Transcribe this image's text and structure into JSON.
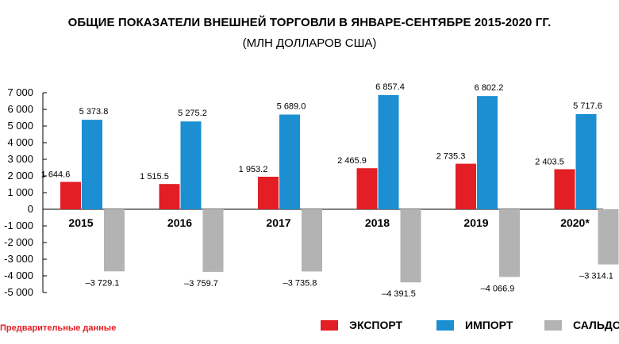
{
  "title": "ОБЩИЕ ПОКАЗАТЕЛИ ВНЕШНЕЙ ТОРГОВЛИ В ЯНВАРЕ-СЕНТЯБРЕ 2015-2020 ГГ.",
  "subtitle": "(МЛН ДОЛЛАРОВ США)",
  "footnote": "Предварительные данные",
  "colors": {
    "export": "#e31e24",
    "import": "#1b8fd2",
    "balance": "#b3b3b3"
  },
  "legend": [
    {
      "label": "ЭКСПОРТ",
      "color": "#e31e24"
    },
    {
      "label": "ИМПОРТ",
      "color": "#1b8fd2"
    },
    {
      "label": "САЛЬДО",
      "color": "#b3b3b3"
    }
  ],
  "chart_data": {
    "type": "bar",
    "title": "ОБЩИЕ ПОКАЗАТЕЛИ ВНЕШНЕЙ ТОРГОВЛИ В ЯНВАРЕ-СЕНТЯБРЕ 2015-2020 ГГ.",
    "subtitle": "(МЛН ДОЛЛАРОВ США)",
    "categories": [
      "2015",
      "2016",
      "2017",
      "2018",
      "2019",
      "2020*"
    ],
    "series": [
      {
        "name": "ЭКСПОРТ",
        "values": [
          1644.6,
          1515.5,
          1953.2,
          2465.9,
          2735.3,
          2403.5
        ],
        "labels": [
          "1 644.6",
          "1 515.5",
          "1 953.2",
          "2 465.9",
          "2 735.3",
          "2 403.5"
        ]
      },
      {
        "name": "ИМПОРТ",
        "values": [
          5373.8,
          5275.2,
          5689.0,
          6857.4,
          6802.2,
          5717.6
        ],
        "labels": [
          "5 373.8",
          "5 275.2",
          "5 689.0",
          "6 857.4",
          "6 802.2",
          "5 717.6"
        ]
      },
      {
        "name": "САЛЬДО",
        "values": [
          -3729.1,
          -3759.7,
          -3735.8,
          -4391.5,
          -4066.9,
          -3314.1
        ],
        "labels": [
          "–3 729.1",
          "–3 759.7",
          "–3 735.8",
          "–4 391.5",
          "–4 066.9",
          "–3 314.1"
        ]
      }
    ],
    "yticks": [
      7000,
      6000,
      5000,
      4000,
      3000,
      2000,
      1000,
      0,
      -1000,
      -2000,
      -3000,
      -4000,
      -5000
    ],
    "ytick_labels": [
      "7 000",
      "6 000",
      "5 000",
      "4 000",
      "3 000",
      "2 000",
      "1 000",
      "0",
      "-1 000",
      "-2 000",
      "-3 000",
      "-4 000",
      "-5 000"
    ],
    "ylim": [
      -5000,
      7000
    ],
    "xlabel": "",
    "ylabel": "",
    "grid": false,
    "legend_position": "bottom"
  }
}
